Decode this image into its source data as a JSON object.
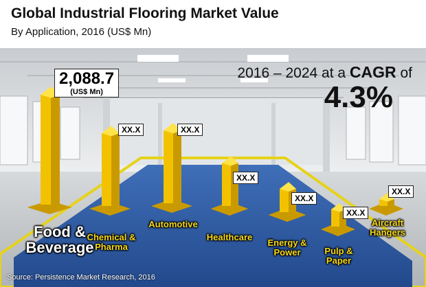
{
  "header": {
    "title": "Global Industrial Flooring Market Value",
    "subtitle": "By Application, 2016 (US$ Mn)"
  },
  "cagr": {
    "prefix": "2016 – 2024 at a",
    "word": "CAGR",
    "suffix": "of",
    "value": "4.3%"
  },
  "source": "Source: Persistence Market Research, 2016",
  "colors": {
    "pillar_front": "#f2c200",
    "pillar_side": "#c99a00",
    "pillar_top": "#ffe34a",
    "label_yellow": "#f6d917",
    "floor_blue": "#2f5ca6"
  },
  "chart_data": {
    "type": "bar",
    "title": "Global Industrial Flooring Market Value",
    "subtitle": "By Application, 2016 (US$ Mn)",
    "categories": [
      "Food & Beverage",
      "Chemical & Pharma",
      "Automotive",
      "Healthcare",
      "Energy & Power",
      "Pulp & Paper",
      "Aircraft Hangers"
    ],
    "value_labels": [
      "2,088.7",
      "XX.X",
      "XX.X",
      "XX.X",
      "XX.X",
      "XX.X",
      "XX.X"
    ],
    "unit_label": "(US$ Mn)",
    "known_values": [
      2088.7,
      null,
      null,
      null,
      null,
      null,
      null
    ],
    "relative_heights": [
      1.0,
      0.64,
      0.64,
      0.35,
      0.16,
      0.1,
      0.0
    ]
  }
}
